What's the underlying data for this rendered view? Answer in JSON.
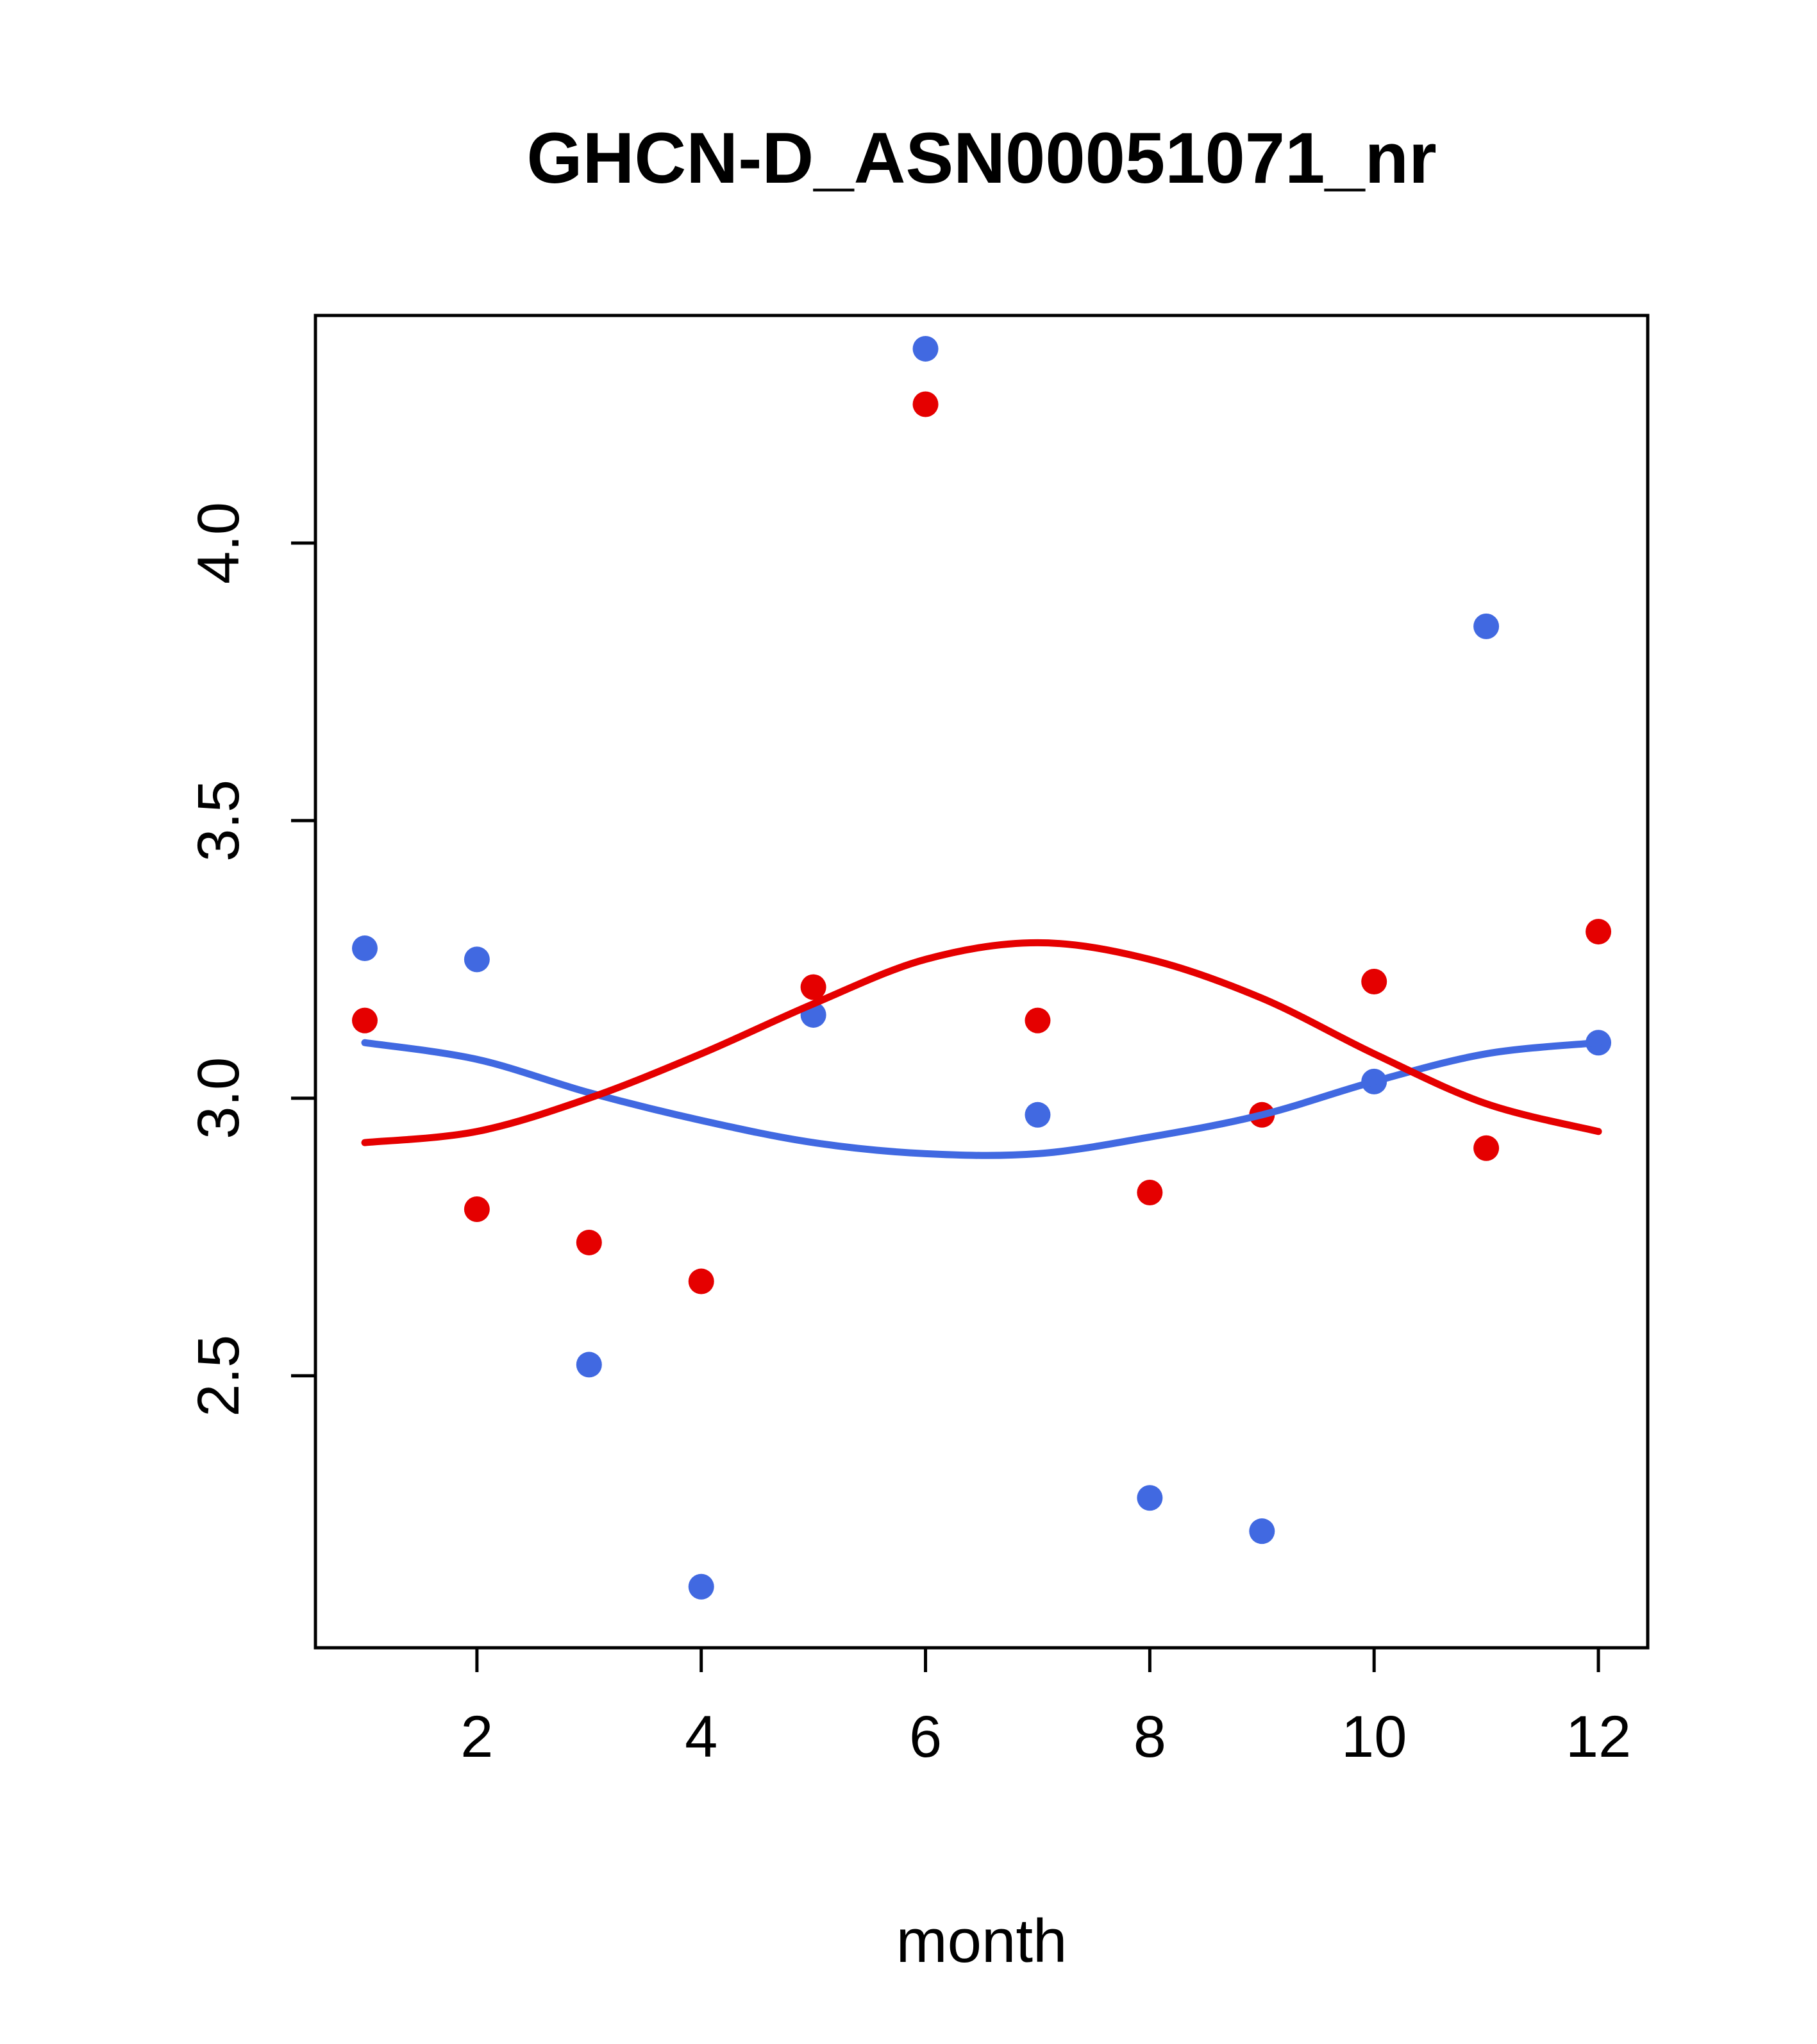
{
  "page": {
    "background": "#ffffff"
  },
  "chart_data": {
    "type": "scatter",
    "title": "GHCN-D_ASN00051071_nr",
    "xlabel": "month",
    "ylabel": "",
    "xlim": [
      0.56,
      12.44
    ],
    "ylim": [
      2.01,
      4.41
    ],
    "x_ticks": [
      2,
      4,
      6,
      8,
      10,
      12
    ],
    "y_ticks": [
      2.5,
      3.0,
      3.5,
      4.0
    ],
    "grid": false,
    "legend": "none",
    "colors": {
      "blue": "#4169E1",
      "red": "#E50000"
    },
    "series": [
      {
        "name": "blue-points",
        "type": "points",
        "color": "#4169E1",
        "x": [
          1,
          2,
          3,
          4,
          5,
          6,
          7,
          8,
          9,
          10,
          11,
          12
        ],
        "y": [
          3.27,
          3.25,
          2.52,
          2.12,
          3.15,
          4.35,
          2.97,
          2.28,
          2.22,
          3.03,
          3.85,
          3.1
        ]
      },
      {
        "name": "red-points",
        "type": "points",
        "color": "#E50000",
        "x": [
          1,
          2,
          3,
          4,
          5,
          6,
          7,
          8,
          9,
          10,
          11,
          12
        ],
        "y": [
          3.14,
          2.8,
          2.74,
          2.67,
          3.2,
          4.25,
          3.14,
          2.83,
          2.97,
          3.21,
          2.91,
          3.3
        ]
      },
      {
        "name": "blue-smooth-line",
        "type": "line",
        "color": "#4169E1",
        "x": [
          1,
          2,
          3,
          4,
          5,
          6,
          7,
          8,
          9,
          10,
          11,
          12
        ],
        "y": [
          3.1,
          3.07,
          3.01,
          2.96,
          2.92,
          2.9,
          2.9,
          2.93,
          2.97,
          3.03,
          3.08,
          3.1
        ]
      },
      {
        "name": "red-smooth-line",
        "type": "line",
        "color": "#E50000",
        "x": [
          1,
          2,
          3,
          4,
          5,
          6,
          7,
          8,
          9,
          10,
          11,
          12
        ],
        "y": [
          2.92,
          2.94,
          3.0,
          3.08,
          3.17,
          3.25,
          3.28,
          3.25,
          3.18,
          3.08,
          2.99,
          2.94
        ]
      }
    ]
  }
}
